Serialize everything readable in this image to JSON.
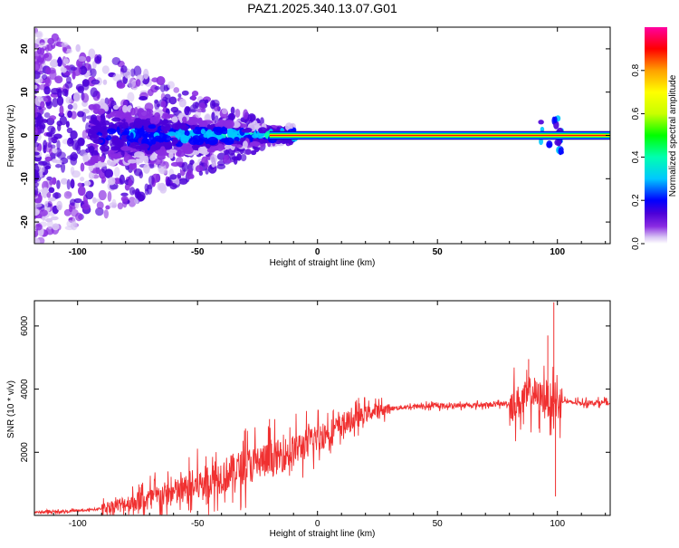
{
  "title": "PAZ1.2025.340.13.07.G01",
  "chart_data": [
    {
      "type": "heatmap",
      "title": "PAZ1.2025.340.13.07.G01",
      "xlabel": "Height of straight line (km)",
      "ylabel": "Frequency (Hz)",
      "xlim": [
        -118,
        122
      ],
      "ylim": [
        -25,
        25
      ],
      "xticks": [
        -100,
        -50,
        0,
        50,
        100
      ],
      "yticks": [
        -20,
        -10,
        0,
        10,
        20
      ],
      "colorbar": {
        "label": "Normalized spectral amplitude",
        "range": [
          0,
          1
        ],
        "ticks": [
          "0.0",
          "0.2",
          "0.4",
          "0.6",
          "0.8"
        ],
        "colormap": [
          "#ffffff",
          "#d8c4f4",
          "#8a2be2",
          "#4b00d8",
          "#0000ff",
          "#00c8ff",
          "#00ffb0",
          "#00ff00",
          "#c8ff00",
          "#ffff00",
          "#ffa000",
          "#ff0000",
          "#ff00a0"
        ]
      },
      "ridge_frequency_hz": 0,
      "ridge_start_km": -20,
      "ridge_end_km": 122
    },
    {
      "type": "line",
      "xlabel": "Height of straight line (km)",
      "ylabel": "SNR (10 * v/v)",
      "xlim": [
        -118,
        122
      ],
      "ylim": [
        0,
        6800
      ],
      "xticks": [
        -100,
        -50,
        0,
        50,
        100
      ],
      "yticks": [
        2000,
        4000,
        6000
      ],
      "color": "#f03030",
      "series": [
        {
          "name": "SNR",
          "x": [
            -118,
            -110,
            -100,
            -95,
            -90,
            -85,
            -80,
            -75,
            -70,
            -65,
            -60,
            -55,
            -50,
            -45,
            -40,
            -35,
            -30,
            -25,
            -20,
            -15,
            -10,
            -5,
            0,
            5,
            10,
            15,
            20,
            25,
            30,
            35,
            40,
            50,
            60,
            70,
            75,
            80,
            85,
            88,
            90,
            92,
            95,
            97,
            99,
            100,
            102,
            105,
            110,
            115,
            120,
            122
          ],
          "values": [
            100,
            110,
            150,
            170,
            220,
            300,
            380,
            450,
            520,
            620,
            700,
            800,
            950,
            1100,
            1250,
            1400,
            1550,
            1700,
            1750,
            1900,
            2050,
            2250,
            2450,
            2650,
            2850,
            3000,
            3200,
            3320,
            3380,
            3420,
            3450,
            3470,
            3480,
            3500,
            3520,
            3550,
            3600,
            3800,
            3900,
            3700,
            3800,
            3650,
            3550,
            3500,
            3650,
            3580,
            3560,
            3570,
            3580,
            3500
          ],
          "spikes": [
            {
              "x": -30,
              "y": 2750
            },
            {
              "x": -20,
              "y": 3050
            },
            {
              "x": 88,
              "y": 4950
            },
            {
              "x": 96,
              "y": 5700
            },
            {
              "x": 98.5,
              "y": 6750
            },
            {
              "x": 99.2,
              "y": 600
            }
          ]
        }
      ]
    }
  ]
}
